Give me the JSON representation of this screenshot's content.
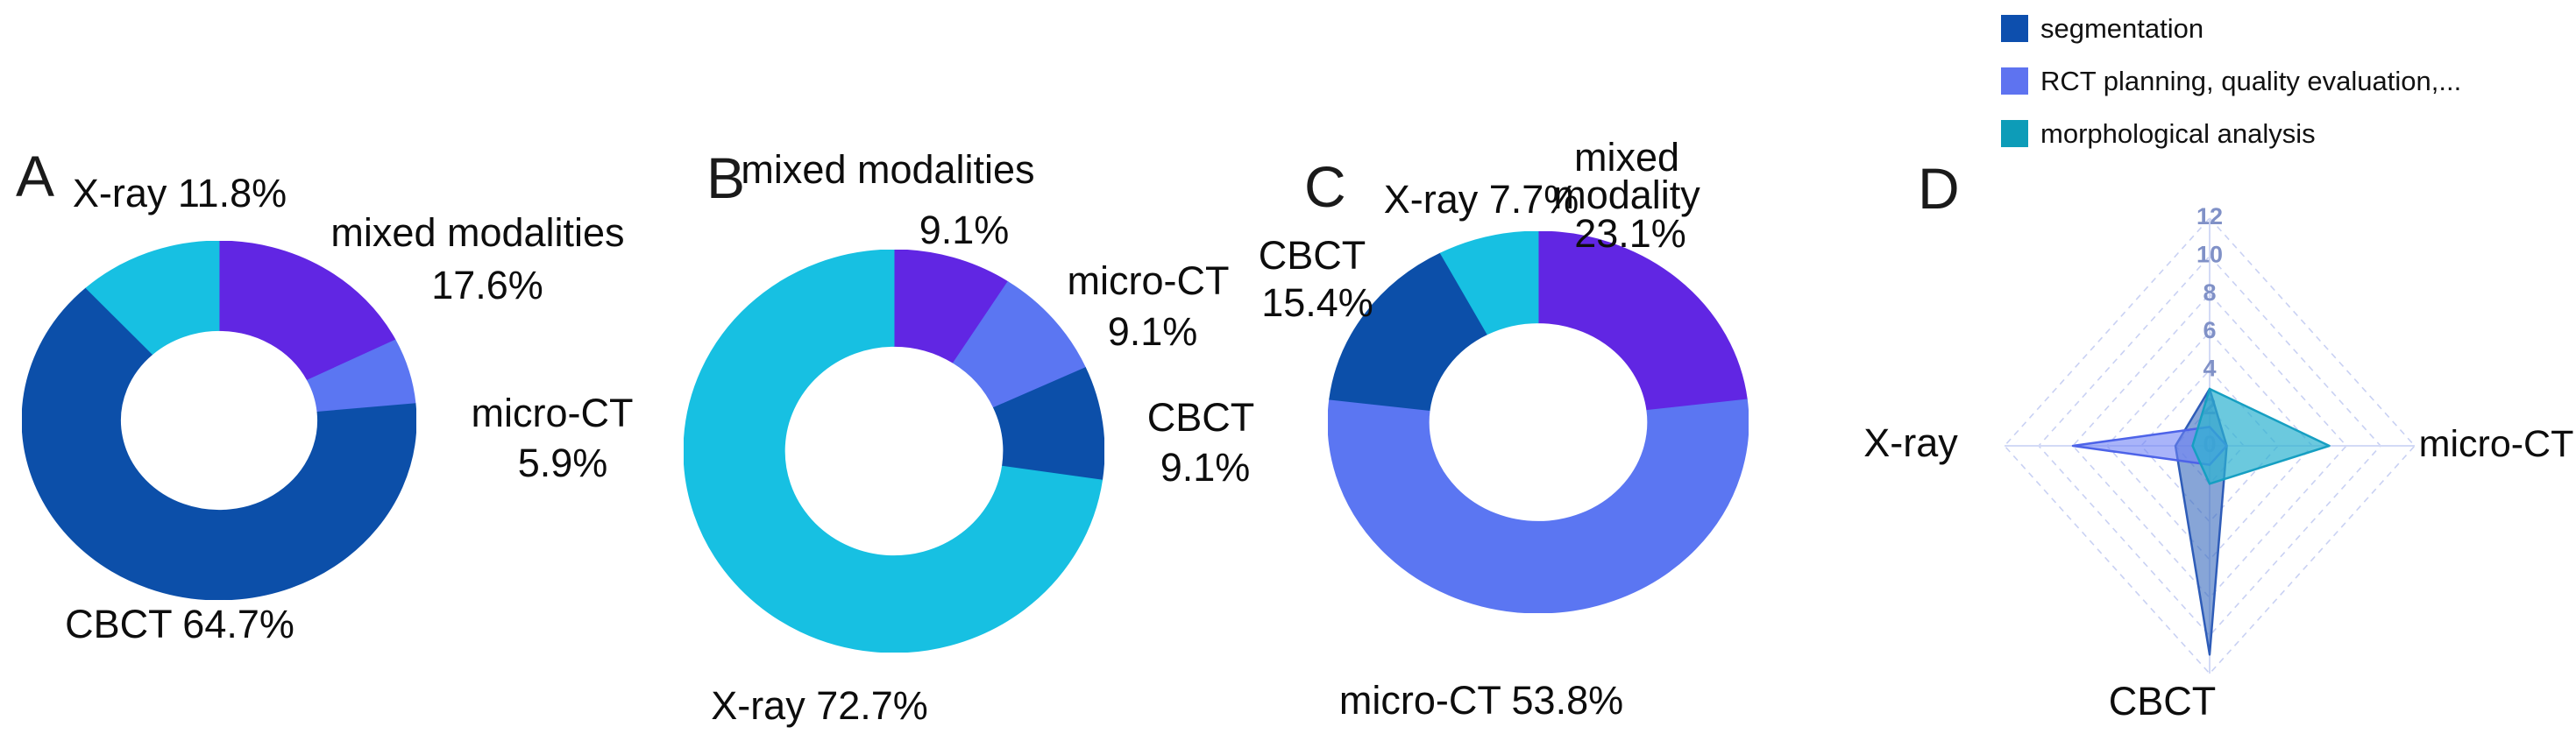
{
  "figure": {
    "background": "#ffffff",
    "panel_letters": {
      "a": "A",
      "b": "B",
      "c": "C",
      "d": "D"
    }
  },
  "legend": {
    "items": [
      {
        "label": "segmentation",
        "color": "#0d4fae"
      },
      {
        "label": "RCT planning, quality evaluation,...",
        "color": "#5e73f0"
      },
      {
        "label": "morphological analysis",
        "color": "#0d9cb8"
      }
    ]
  },
  "labels": {
    "panel_a": "A",
    "panel_b": "B",
    "panel_c": "C",
    "panel_d": "D",
    "a_xray": "X-ray 11.8%",
    "a_mixed": "mixed modalities",
    "a_mixed_pct": "17.6%",
    "a_microct": "micro-CT",
    "a_microct_pct": "5.9%",
    "a_cbct": "CBCT 64.7%",
    "b_mixed": "mixed modalities",
    "b_mixed_pct": "9.1%",
    "b_microct": "micro-CT",
    "b_microct_pct": "9.1%",
    "b_cbct": "CBCT",
    "b_cbct_pct": "9.1%",
    "b_xray": "X-ray 72.7%",
    "c_xray": "X-ray 7.7%",
    "c_mixed_l1": "mixed",
    "c_mixed_l2": "modality",
    "c_mixed_pct": "23.1%",
    "c_cbct": "CBCT",
    "c_cbct_pct": "15.4%",
    "c_microct": "micro-CT 53.8%",
    "d_xray": "X-ray",
    "d_microct": "micro-CT",
    "d_cbct": "CBCT"
  },
  "colors": {
    "mixed_modalities": "#6126e3",
    "micro_ct": "#5b76f2",
    "cbct": "#0c4fa9",
    "xray": "#17c0e2",
    "radar_grid": "#c9d1f3",
    "radar_axis": "#d3daf6",
    "radar_tick_text": "#8091c7"
  },
  "chart_data": [
    {
      "type": "pie",
      "panel": "A",
      "donut": true,
      "title": "",
      "categories": [
        "mixed modalities",
        "micro-CT",
        "CBCT",
        "X-ray"
      ],
      "values": [
        17.6,
        5.9,
        64.7,
        11.8
      ],
      "unit": "%",
      "colors": [
        "#6126e3",
        "#5b76f2",
        "#0c4fa9",
        "#17c0e2"
      ],
      "start_angle_deg": 0,
      "direction": "clockwise"
    },
    {
      "type": "pie",
      "panel": "B",
      "donut": true,
      "title": "",
      "categories": [
        "mixed modalities",
        "micro-CT",
        "CBCT",
        "X-ray"
      ],
      "values": [
        9.1,
        9.1,
        9.1,
        72.7
      ],
      "unit": "%",
      "colors": [
        "#6126e3",
        "#5b76f2",
        "#0c4fa9",
        "#17c0e2"
      ],
      "start_angle_deg": 0,
      "direction": "clockwise"
    },
    {
      "type": "pie",
      "panel": "C",
      "donut": true,
      "title": "",
      "categories": [
        "mixed modality",
        "micro-CT",
        "CBCT",
        "X-ray"
      ],
      "values": [
        23.1,
        53.8,
        15.4,
        7.7
      ],
      "unit": "%",
      "colors": [
        "#6126e3",
        "#5b76f2",
        "#0c4fa9",
        "#17c0e2"
      ],
      "start_angle_deg": 0,
      "direction": "clockwise"
    },
    {
      "type": "radar",
      "panel": "D",
      "axes_clockwise_from_top": [
        "",
        "micro-CT",
        "CBCT",
        "X-ray"
      ],
      "radial_ticks": [
        0,
        2,
        4,
        6,
        8,
        10,
        12
      ],
      "radial_range": [
        0,
        12
      ],
      "grid": "dashed-diamonds",
      "series": [
        {
          "name": "segmentation",
          "values": [
            3,
            1,
            11,
            2
          ],
          "stroke": "#2e5cb8",
          "fill": "rgba(62,110,190,0.62)"
        },
        {
          "name": "RCT planning, quality evaluation,...",
          "values": [
            1,
            1,
            1,
            8
          ],
          "stroke": "#4d63e8",
          "fill": "rgba(112,130,245,0.60)"
        },
        {
          "name": "morphological analysis",
          "values": [
            3,
            7,
            2,
            1
          ],
          "stroke": "#169fc2",
          "fill": "rgba(44,178,208,0.70)"
        }
      ]
    }
  ]
}
